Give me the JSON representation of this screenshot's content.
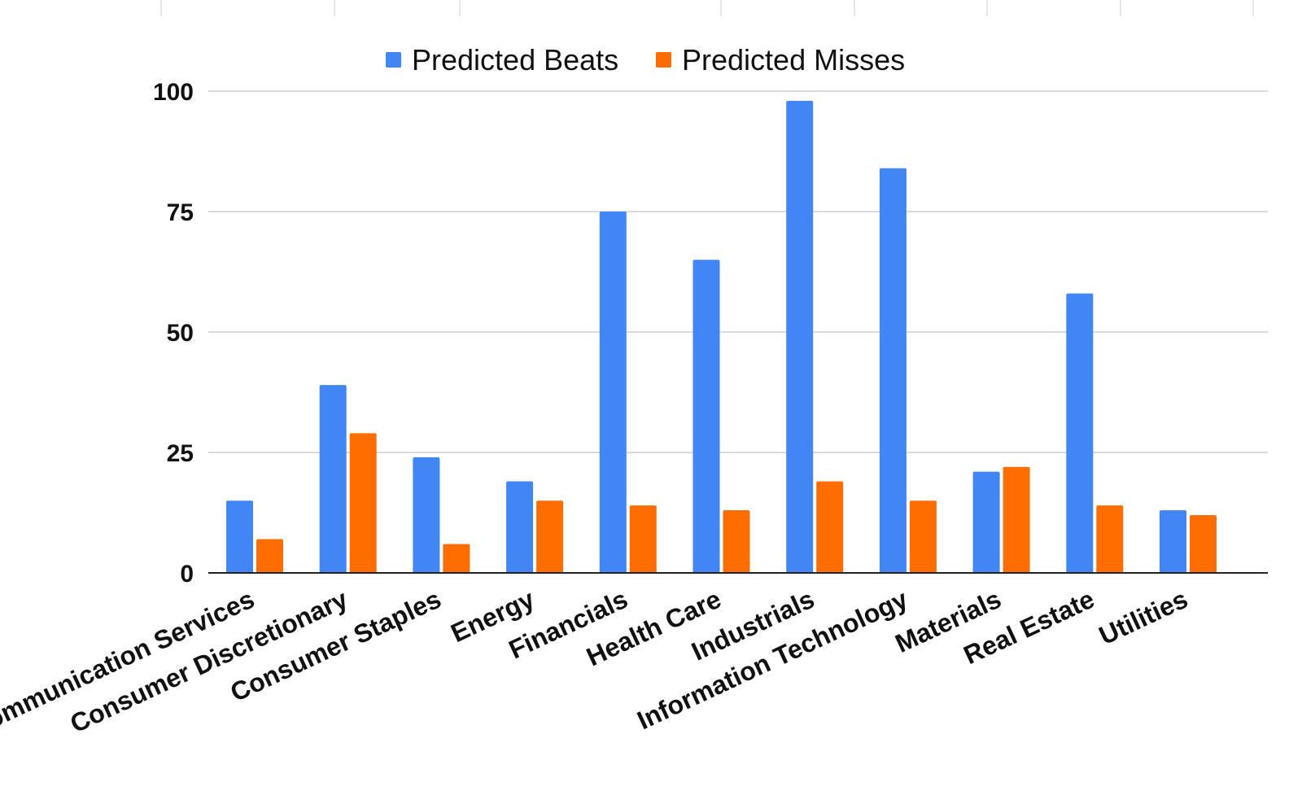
{
  "chart_data": {
    "type": "bar",
    "title": "",
    "xlabel": "",
    "ylabel": "",
    "ylim": [
      0,
      100
    ],
    "yticks": [
      0,
      25,
      50,
      75,
      100
    ],
    "grid": true,
    "legend_position": "top-center",
    "categories": [
      "Communication Services",
      "Consumer Discretionary",
      "Consumer Staples",
      "Energy",
      "Financials",
      "Health Care",
      "Industrials",
      "Information Technology",
      "Materials",
      "Real Estate",
      "Utilities"
    ],
    "series": [
      {
        "name": "Predicted Beats",
        "color": "#4285f4",
        "values": [
          15,
          39,
          24,
          19,
          75,
          65,
          98,
          84,
          21,
          58,
          13
        ]
      },
      {
        "name": "Predicted Misses",
        "color": "#ff6d01",
        "values": [
          7,
          29,
          6,
          15,
          14,
          13,
          19,
          15,
          22,
          14,
          12
        ]
      }
    ]
  }
}
